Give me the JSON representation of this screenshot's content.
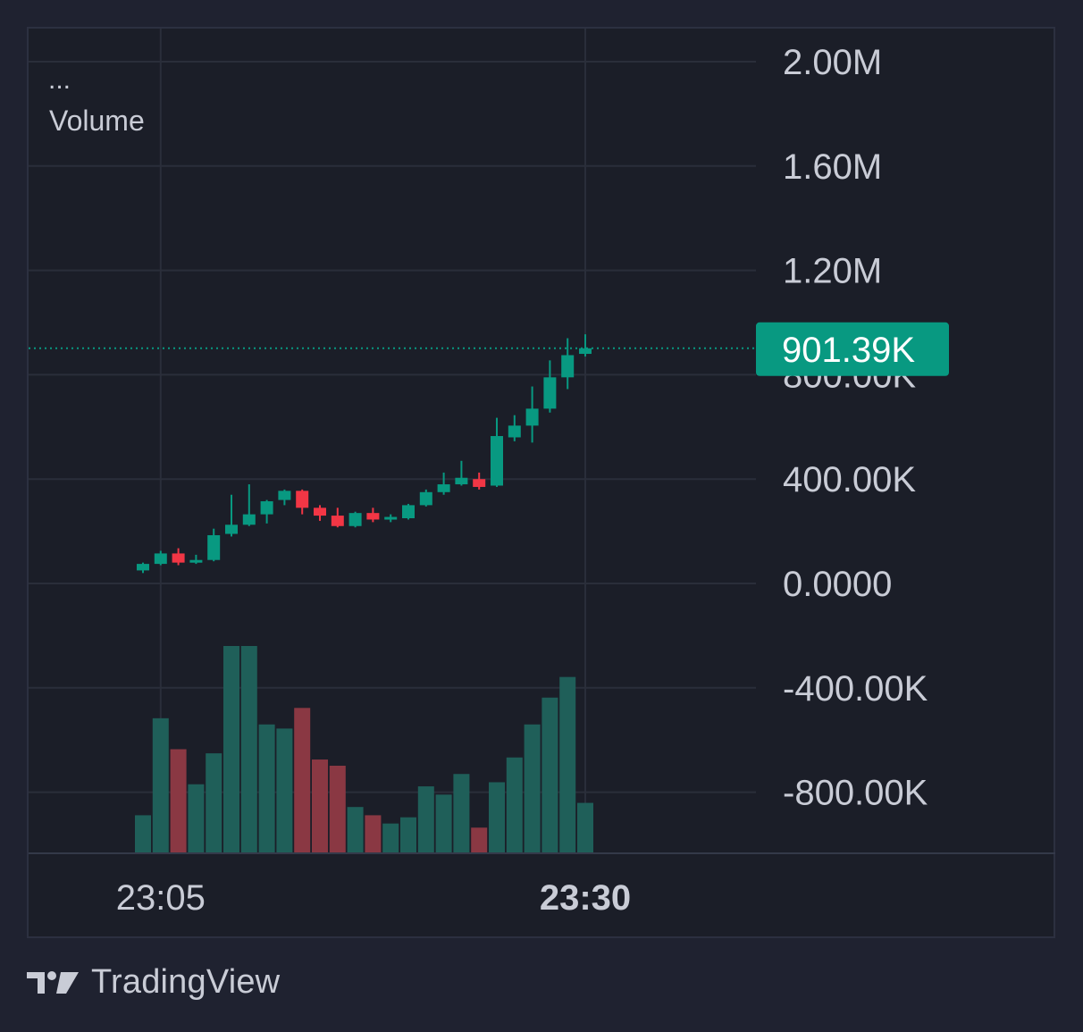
{
  "legend": {
    "more": "...",
    "indicator": "Volume"
  },
  "price_label": {
    "value": "901.39K",
    "color": "#089981"
  },
  "footer": {
    "brand": "TradingView",
    "logo_icon": "tradingview-logo-icon"
  },
  "colors": {
    "background": "#1b1e28",
    "grid": "#2a2e3a",
    "up": "#089981",
    "down": "#f23645",
    "volume_up": "#1f5f59",
    "volume_down": "#8a3843",
    "axis_text": "#c9ccd6"
  },
  "chart_data": {
    "type": "candlestick",
    "y_axis": {
      "ticks": [
        "2.00M",
        "1.60M",
        "1.20M",
        "800.00K",
        "400.00K",
        "0.0000",
        "-400.00K",
        "-800.00K"
      ],
      "tick_values": [
        2000000,
        1600000,
        1200000,
        800000,
        400000,
        0,
        -400000,
        -800000
      ]
    },
    "x_axis": {
      "ticks": [
        {
          "label": "23:05",
          "index": 1,
          "bold": false
        },
        {
          "label": "23:30",
          "index": 25,
          "bold": true
        }
      ]
    },
    "last_value": 901390,
    "candles": [
      {
        "o": 50000,
        "h": 80000,
        "l": 40000,
        "c": 75000
      },
      {
        "o": 75000,
        "h": 125000,
        "l": 70000,
        "c": 115000
      },
      {
        "o": 115000,
        "h": 135000,
        "l": 70000,
        "c": 80000
      },
      {
        "o": 80000,
        "h": 110000,
        "l": 75000,
        "c": 90000
      },
      {
        "o": 90000,
        "h": 210000,
        "l": 85000,
        "c": 185000
      },
      {
        "o": 190000,
        "h": 340000,
        "l": 180000,
        "c": 225000
      },
      {
        "o": 225000,
        "h": 380000,
        "l": 220000,
        "c": 265000
      },
      {
        "o": 265000,
        "h": 320000,
        "l": 230000,
        "c": 315000
      },
      {
        "o": 320000,
        "h": 360000,
        "l": 300000,
        "c": 355000
      },
      {
        "o": 355000,
        "h": 360000,
        "l": 265000,
        "c": 290000
      },
      {
        "o": 290000,
        "h": 300000,
        "l": 240000,
        "c": 260000
      },
      {
        "o": 260000,
        "h": 290000,
        "l": 215000,
        "c": 220000
      },
      {
        "o": 220000,
        "h": 275000,
        "l": 215000,
        "c": 270000
      },
      {
        "o": 270000,
        "h": 290000,
        "l": 235000,
        "c": 245000
      },
      {
        "o": 245000,
        "h": 265000,
        "l": 235000,
        "c": 255000
      },
      {
        "o": 250000,
        "h": 305000,
        "l": 245000,
        "c": 300000
      },
      {
        "o": 300000,
        "h": 360000,
        "l": 295000,
        "c": 350000
      },
      {
        "o": 350000,
        "h": 425000,
        "l": 340000,
        "c": 380000
      },
      {
        "o": 380000,
        "h": 470000,
        "l": 375000,
        "c": 405000
      },
      {
        "o": 400000,
        "h": 425000,
        "l": 360000,
        "c": 370000
      },
      {
        "o": 375000,
        "h": 635000,
        "l": 370000,
        "c": 565000
      },
      {
        "o": 560000,
        "h": 645000,
        "l": 545000,
        "c": 605000
      },
      {
        "o": 605000,
        "h": 755000,
        "l": 540000,
        "c": 670000
      },
      {
        "o": 670000,
        "h": 855000,
        "l": 655000,
        "c": 790000
      },
      {
        "o": 790000,
        "h": 940000,
        "l": 745000,
        "c": 875000
      },
      {
        "o": 880000,
        "h": 955000,
        "l": 870000,
        "c": 901390
      }
    ],
    "volume": [
      {
        "v": 0.18,
        "up": true
      },
      {
        "v": 0.65,
        "up": true
      },
      {
        "v": 0.5,
        "up": false
      },
      {
        "v": 0.33,
        "up": true
      },
      {
        "v": 0.48,
        "up": true
      },
      {
        "v": 1.0,
        "up": true
      },
      {
        "v": 1.0,
        "up": true
      },
      {
        "v": 0.62,
        "up": true
      },
      {
        "v": 0.6,
        "up": true
      },
      {
        "v": 0.7,
        "up": false
      },
      {
        "v": 0.45,
        "up": false
      },
      {
        "v": 0.42,
        "up": false
      },
      {
        "v": 0.22,
        "up": true
      },
      {
        "v": 0.18,
        "up": false
      },
      {
        "v": 0.14,
        "up": true
      },
      {
        "v": 0.17,
        "up": true
      },
      {
        "v": 0.32,
        "up": true
      },
      {
        "v": 0.28,
        "up": true
      },
      {
        "v": 0.38,
        "up": true
      },
      {
        "v": 0.12,
        "up": false
      },
      {
        "v": 0.34,
        "up": true
      },
      {
        "v": 0.46,
        "up": true
      },
      {
        "v": 0.62,
        "up": true
      },
      {
        "v": 0.75,
        "up": true
      },
      {
        "v": 0.85,
        "up": true
      },
      {
        "v": 0.24,
        "up": true
      }
    ]
  }
}
